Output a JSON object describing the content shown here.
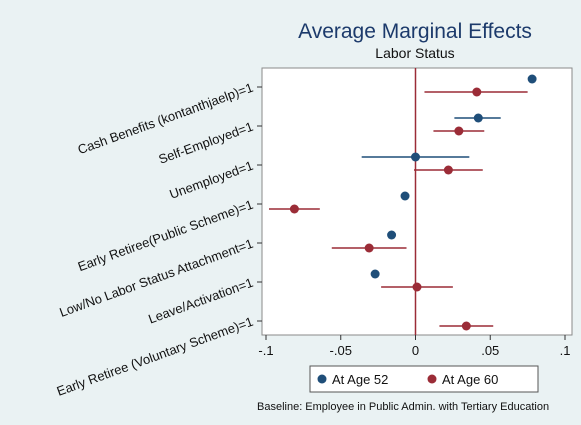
{
  "chart_data": {
    "type": "scatter",
    "title": "Average Marginal Effects",
    "subtitle": "Labor Status",
    "categories": [
      "Cash Benefits (kontanthjaelp)=1",
      "Self-Employed=1",
      "Unemployed=1",
      "Early Retiree(Public Scheme)=1",
      "Low/No Labor Status Attachment=1",
      "Leave/Activation=1",
      "Early Retiree (Voluntary Scheme)=1"
    ],
    "xlim": [
      -0.1,
      0.1
    ],
    "xticks": [
      -0.1,
      -0.05,
      0,
      0.05,
      0.1
    ],
    "xtick_labels": [
      "-.1",
      "-.05",
      "0",
      ".05",
      ".1"
    ],
    "reference_line_x": 0,
    "series": [
      {
        "name": "At Age 52",
        "color": "#1f4e79",
        "values": [
          0.078,
          0.042,
          0.0,
          -0.007,
          -0.016,
          -0.027,
          null
        ],
        "ci_low": [
          null,
          0.026,
          -0.036,
          null,
          null,
          null,
          null
        ],
        "ci_high": [
          null,
          0.057,
          0.036,
          null,
          null,
          null,
          null
        ]
      },
      {
        "name": "At Age 60",
        "color": "#9b2c37",
        "values": [
          0.041,
          0.029,
          0.022,
          -0.081,
          -0.031,
          0.001,
          0.034
        ],
        "ci_low": [
          0.006,
          0.012,
          -0.001,
          -0.098,
          -0.056,
          -0.023,
          0.016
        ],
        "ci_high": [
          0.075,
          0.046,
          0.045,
          -0.064,
          -0.006,
          0.025,
          0.052
        ]
      }
    ],
    "legend_position": "bottom",
    "note": "Baseline: Employee in Public Admin. with Tertiary Education"
  }
}
